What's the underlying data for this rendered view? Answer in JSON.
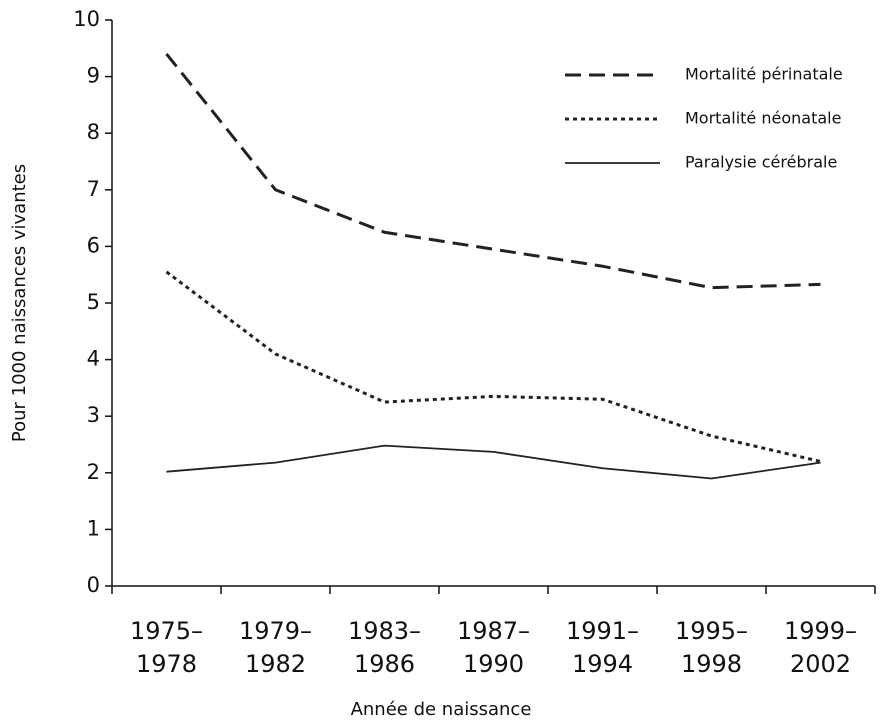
{
  "chart_data": {
    "type": "line",
    "x_label": "Année de naissance",
    "y_label": "Pour 1000 naissances vivantes",
    "categories": [
      [
        "1975–",
        "1978"
      ],
      [
        "1979–",
        "1982"
      ],
      [
        "1983–",
        "1986"
      ],
      [
        "1987–",
        "1990"
      ],
      [
        "1991–",
        "1994"
      ],
      [
        "1995–",
        "1998"
      ],
      [
        "1999–",
        "2002"
      ]
    ],
    "series": [
      {
        "name": "Mortalité périnatale",
        "color": "#222222",
        "dash": "dashed",
        "values": [
          9.4,
          7.0,
          6.25,
          5.95,
          5.65,
          5.27,
          5.33
        ]
      },
      {
        "name": "Mortalité néonatale",
        "color": "#222222",
        "dash": "dotted",
        "values": [
          5.55,
          4.1,
          3.25,
          3.35,
          3.3,
          2.65,
          2.2
        ]
      },
      {
        "name": "Paralysie cérébrale",
        "color": "#222222",
        "dash": "solid",
        "values": [
          2.02,
          2.18,
          2.48,
          2.37,
          2.08,
          1.9,
          2.18
        ]
      }
    ],
    "ylim": [
      0,
      10
    ],
    "yticks": [
      0,
      1,
      2,
      3,
      4,
      5,
      6,
      7,
      8,
      9,
      10
    ],
    "grid": false,
    "legend": "upper right"
  }
}
